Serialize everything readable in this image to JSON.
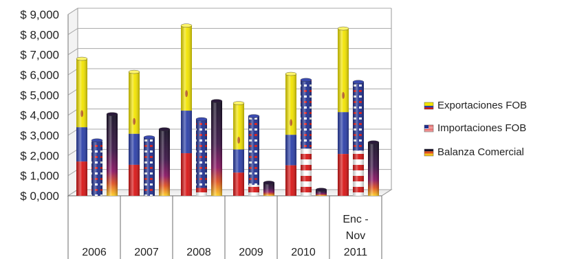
{
  "chart_data": {
    "type": "bar",
    "categories": [
      "2006",
      "2007",
      "2008",
      "2009",
      "2010",
      "Enc - Nov 2011"
    ],
    "category_lines": [
      [
        "2006"
      ],
      [
        "2007"
      ],
      [
        "2008"
      ],
      [
        "2009"
      ],
      [
        "2010"
      ],
      [
        "Enc -",
        "Nov",
        "2011"
      ]
    ],
    "series": [
      {
        "name": "Exportaciones FOB",
        "values": [
          6800,
          6150,
          8450,
          4600,
          6050,
          8300
        ],
        "colors": [
          "#f2e400",
          "#2b3fa8",
          "#d81515"
        ]
      },
      {
        "name": "Importaciones FOB",
        "values": [
          2750,
          2900,
          3800,
          3950,
          5750,
          5650
        ],
        "colors": [
          "#1f2f8f",
          "#d81515",
          "#ffffff"
        ]
      },
      {
        "name": "Balanza Comercial",
        "values": [
          4050,
          3300,
          4700,
          650,
          300,
          2650
        ],
        "colors": [
          "#15102a",
          "#7a1060",
          "#e0501a",
          "#f7c21a"
        ]
      }
    ],
    "y_tick_labels": [
      "$ 0,000",
      "$ 1,000",
      "$ 2,000",
      "$ 3,000",
      "$ 4,000",
      "$ 5,000",
      "$ 6,000",
      "$ 7,000",
      "$ 8,000",
      "$ 9,000"
    ],
    "ylim": [
      0,
      9000
    ],
    "title": "",
    "xlabel": "",
    "ylabel": "",
    "grid": true,
    "legend_position": "right"
  }
}
